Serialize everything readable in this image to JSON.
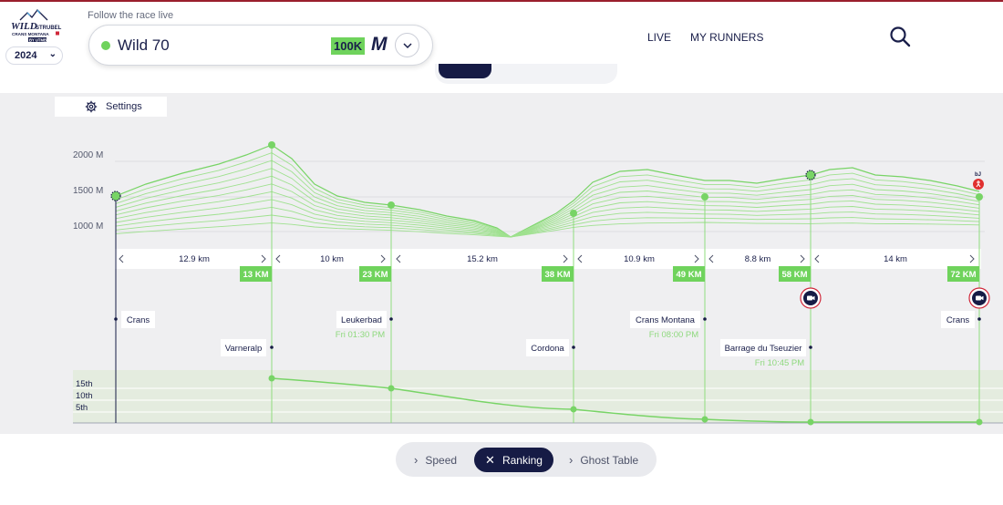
{
  "header": {
    "logo_text": [
      "WILD",
      "STRUBEL",
      "CRANS MONTANA",
      "BY UTMB"
    ],
    "year": "2024",
    "follow_label": "Follow the race live",
    "race_name": "Wild 70",
    "brand_badge": "100K",
    "brand_m": "M",
    "nav": {
      "live": "LIVE",
      "my_runners": "MY RUNNERS"
    }
  },
  "settings_label": "Settings",
  "elevation_axis": [
    "2000 M",
    "1500 M",
    "1000 M"
  ],
  "segments": [
    {
      "distance": "12.9 km"
    },
    {
      "distance": "10 km"
    },
    {
      "distance": "15.2 km"
    },
    {
      "distance": "10.9 km"
    },
    {
      "distance": "8.8 km"
    },
    {
      "distance": "14 km"
    }
  ],
  "checkpoints": [
    {
      "km": "13 KM"
    },
    {
      "km": "23 KM"
    },
    {
      "km": "38 KM"
    },
    {
      "km": "49 KM"
    },
    {
      "km": "58 KM"
    },
    {
      "km": "72 KM"
    }
  ],
  "locations": [
    {
      "name": "Crans",
      "time": ""
    },
    {
      "name": "Varneralp",
      "time": ""
    },
    {
      "name": "Leukerbad",
      "time": "Fri 01:30 PM"
    },
    {
      "name": "Cordona",
      "time": ""
    },
    {
      "name": "Crans Montana",
      "time": "Fri 08:00 PM"
    },
    {
      "name": "Barrage du Tseuzier",
      "time": "Fri 10:45 PM"
    },
    {
      "name": "Crans",
      "time": ""
    }
  ],
  "ranking_axis": [
    "15th",
    "10th",
    "5th"
  ],
  "bottom_toggle": {
    "speed": "Speed",
    "ranking": "Ranking",
    "ghost_table": "Ghost Table"
  },
  "colors": {
    "accent_green": "#6fd35c",
    "navy": "#161b45",
    "camera_red": "#d0283a"
  },
  "icons": {
    "search": "search-icon",
    "settings": "gear-icon",
    "camera": "camera-icon",
    "runner": "runner-icon"
  }
}
